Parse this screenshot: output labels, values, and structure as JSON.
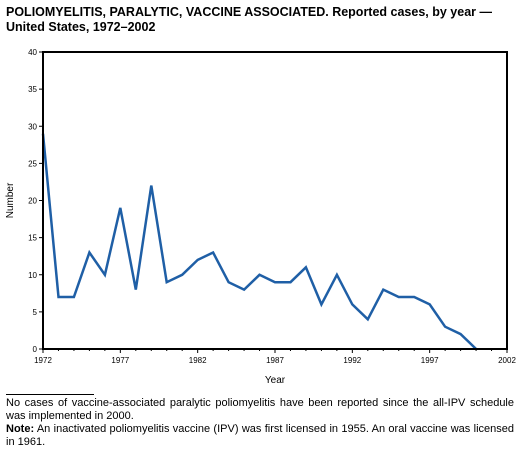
{
  "header": {
    "title_bold": "POLIOMYELITIS, PARALYTIC, VACCINE ASSOCIATED.",
    "title_rest": " Reported cases, by year — United States, 1972–2002"
  },
  "chart_data": {
    "type": "line",
    "title": "POLIOMYELITIS, PARALYTIC, VACCINE ASSOCIATED. Reported cases, by year — United States, 1972–2002",
    "xlabel": "Year",
    "ylabel": "Number",
    "xlim": [
      1972,
      2002
    ],
    "ylim": [
      0,
      40
    ],
    "xticks": [
      1972,
      1977,
      1982,
      1987,
      1992,
      1997,
      2002
    ],
    "yticks": [
      0,
      5,
      10,
      15,
      20,
      25,
      30,
      35,
      40
    ],
    "grid": false,
    "line_color": "#1f5fa6",
    "x": [
      1972,
      1973,
      1974,
      1975,
      1976,
      1977,
      1978,
      1979,
      1980,
      1981,
      1982,
      1983,
      1984,
      1985,
      1986,
      1987,
      1988,
      1989,
      1990,
      1991,
      1992,
      1993,
      1994,
      1995,
      1996,
      1997,
      1998,
      1999,
      2000
    ],
    "y": [
      29,
      7,
      7,
      13,
      10,
      19,
      8,
      22,
      9,
      10,
      12,
      13,
      9,
      8,
      10,
      9,
      9,
      11,
      6,
      10,
      6,
      4,
      8,
      7,
      7,
      6,
      3,
      2,
      0
    ]
  },
  "footnotes": {
    "asterisk_note": "No cases of vaccine-associated paralytic poliomyelitis have been reported since the all-IPV schedule was implemented in 2000.",
    "note_label": "Note:",
    "note_text": " An inactivated poliomyelitis vaccine (IPV) was first licensed in 1955. An oral vaccine was licensed in 1961."
  }
}
